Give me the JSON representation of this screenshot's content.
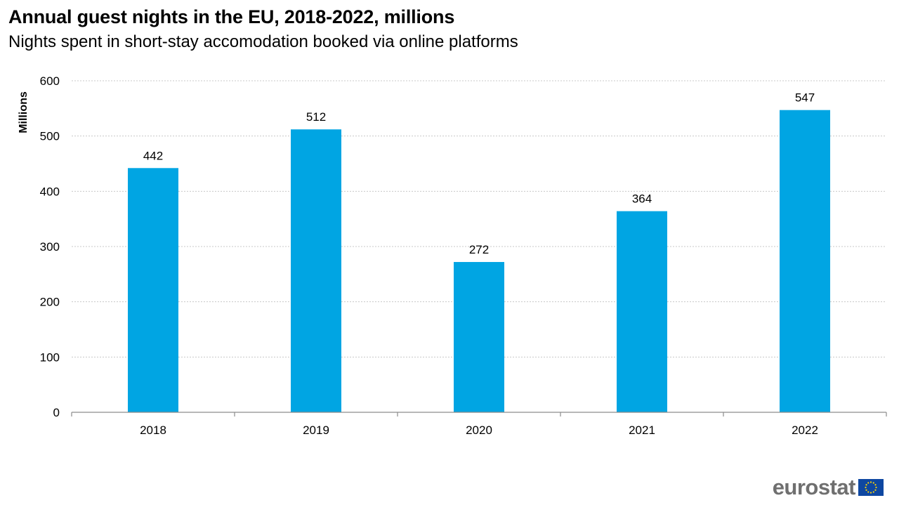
{
  "header": {
    "title": "Annual guest nights in the EU, 2018-2022, millions",
    "subtitle": "Nights spent in short-stay accomodation booked via online platforms"
  },
  "logo": {
    "text": "eurostat",
    "icon": "eu-flag-icon"
  },
  "colors": {
    "bar": "#00A5E3",
    "grid": "#C8C8C8",
    "axis": "#8C8C8C",
    "flag_blue": "#0E47A1",
    "flag_star": "#FFD500"
  },
  "chart_data": {
    "type": "bar",
    "title": "Annual guest nights in the EU, 2018-2022, millions",
    "subtitle": "Nights spent in short-stay accomodation booked via online platforms",
    "xlabel": "",
    "ylabel": "Millions",
    "categories": [
      "2018",
      "2019",
      "2020",
      "2021",
      "2022"
    ],
    "values": [
      442,
      512,
      272,
      364,
      547
    ],
    "data_labels": [
      "442",
      "512",
      "272",
      "364",
      "547"
    ],
    "ylim": [
      0,
      600
    ],
    "yticks": [
      0,
      100,
      200,
      300,
      400,
      500,
      600
    ],
    "grid": true,
    "legend": "none"
  }
}
